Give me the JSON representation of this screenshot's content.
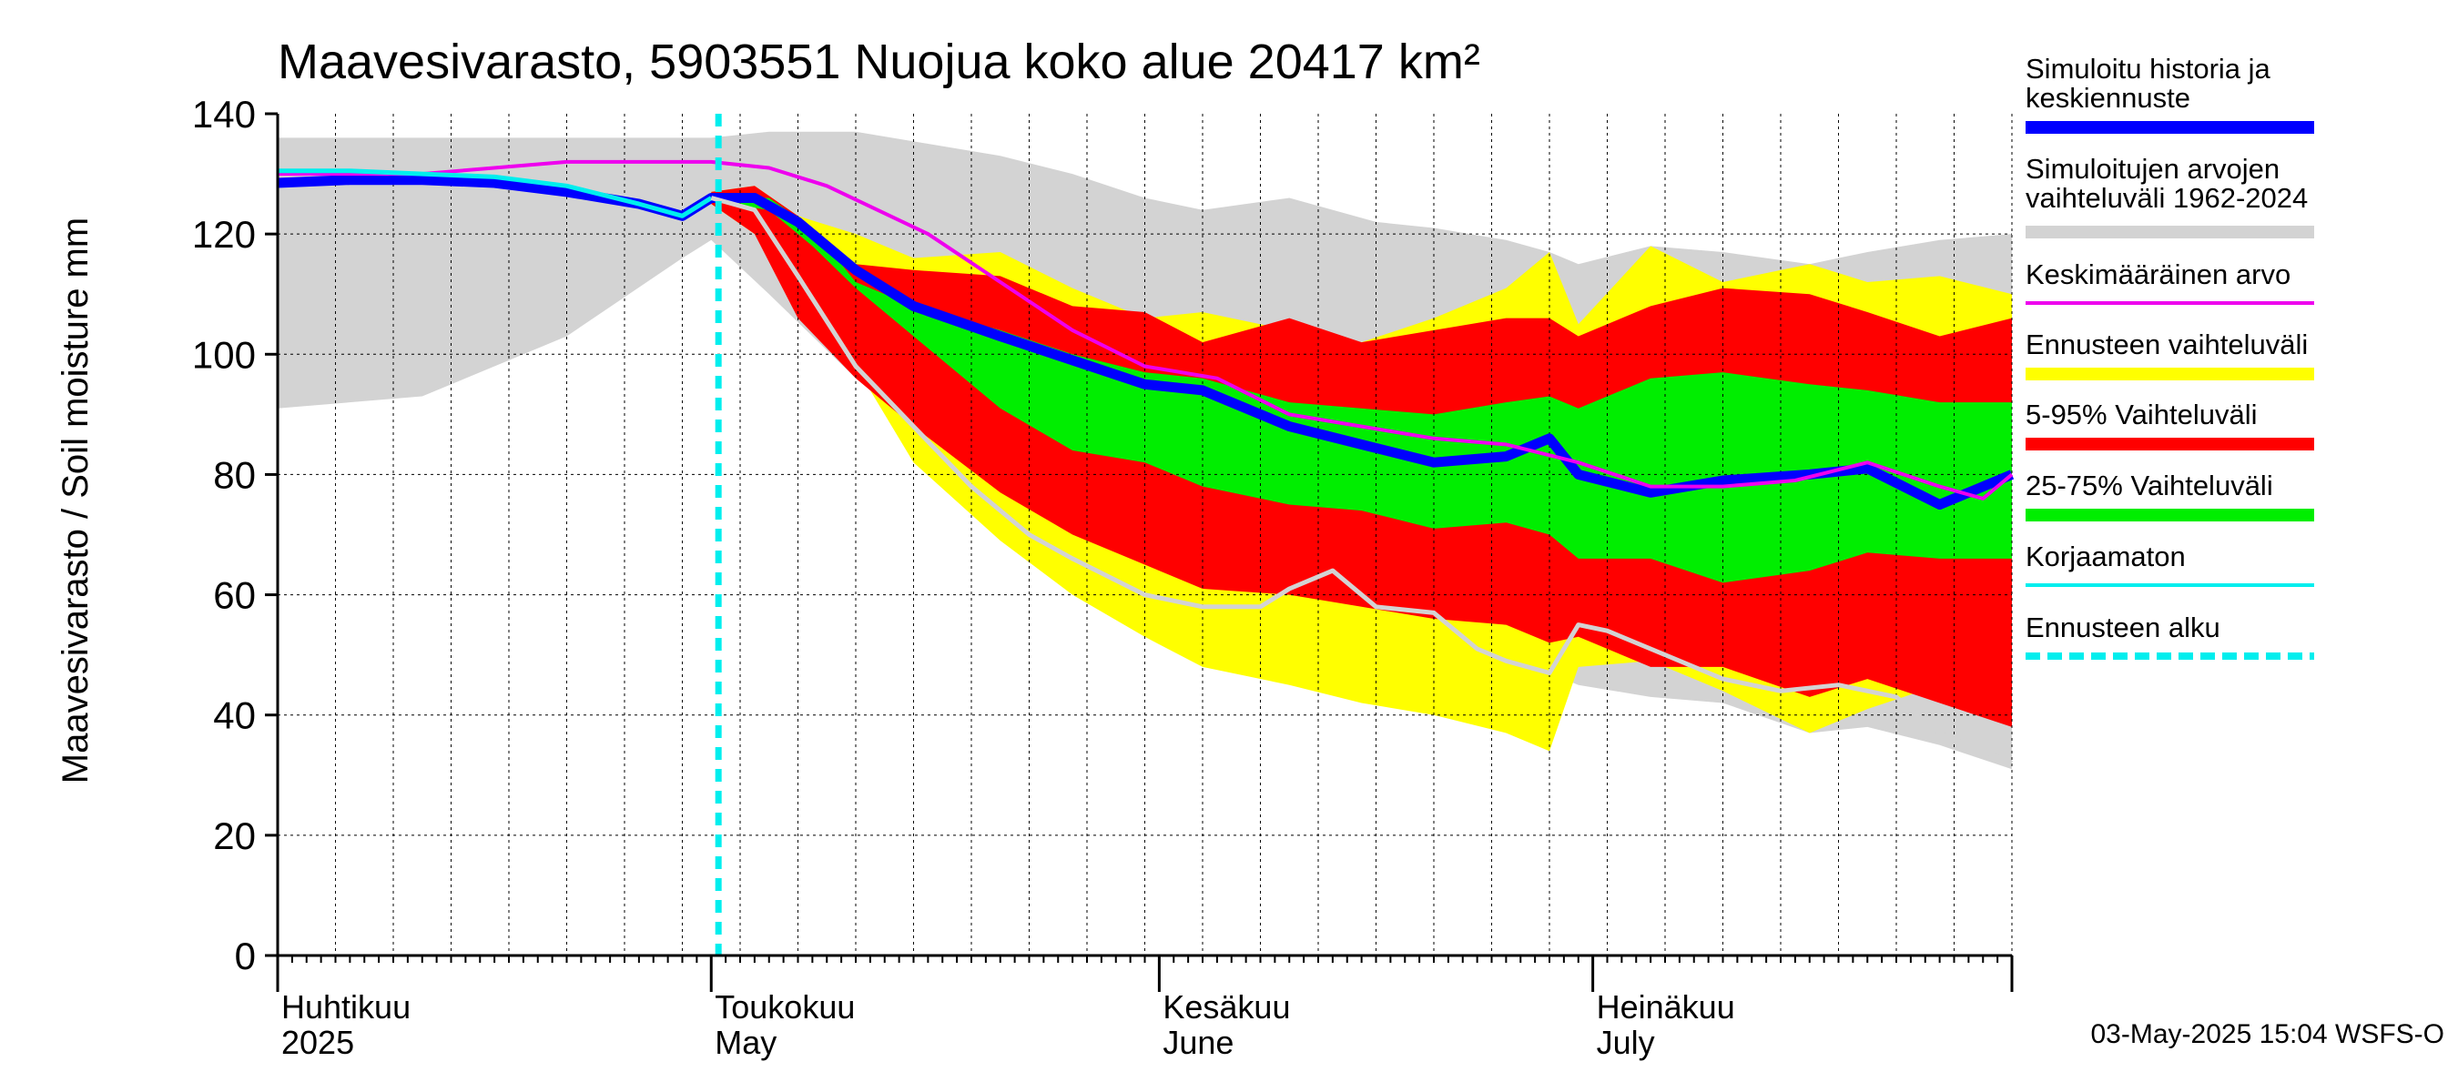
{
  "chart_data": {
    "type": "area",
    "title": "Maavesivarasto, 5903551 Nuojua koko alue 20417 km²",
    "ylabel": "Maavesivarasto / Soil moisture   mm",
    "ylim": [
      0,
      140
    ],
    "yticks": [
      0,
      20,
      40,
      60,
      80,
      100,
      120,
      140
    ],
    "x_range_days": [
      0,
      120
    ],
    "x_unit": "days since 1 April 2025",
    "month_labels": [
      {
        "fi": "Huhtikuu",
        "en": "2025",
        "day": 0
      },
      {
        "fi": "Toukokuu",
        "en": "May",
        "day": 30
      },
      {
        "fi": "Kesäkuu",
        "en": "June",
        "day": 61
      },
      {
        "fi": "Heinäkuu",
        "en": "July",
        "day": 91
      }
    ],
    "forecast_start_day": 30.5,
    "bands": [
      {
        "name": "Simuloitujen arvojen vaihteluväli 1962-2024",
        "color": "#d3d3d3",
        "x": [
          0,
          10,
          20,
          28,
          30,
          34,
          40,
          45,
          50,
          55,
          60,
          64,
          70,
          76,
          80,
          85,
          88,
          90,
          95,
          100,
          106,
          110,
          115,
          120
        ],
        "upper": [
          136,
          136,
          136,
          136,
          136,
          137,
          137,
          135,
          133,
          130,
          126,
          124,
          126,
          122,
          121,
          119,
          117,
          115,
          118,
          117,
          115,
          117,
          119,
          120
        ],
        "lower": [
          91,
          93,
          103,
          116,
          119,
          110,
          96,
          87,
          78,
          71,
          64,
          60,
          56,
          52,
          49,
          48,
          47,
          45,
          43,
          42,
          37,
          38,
          35,
          31
        ]
      },
      {
        "name": "Ennusteen vaihteluväli",
        "color": "#ffff00",
        "x": [
          30,
          33,
          36,
          40,
          44,
          50,
          55,
          60,
          64,
          70,
          75,
          80,
          85,
          88,
          90,
          95,
          100,
          106,
          110,
          115,
          120
        ],
        "upper": [
          127,
          128,
          123,
          120,
          116,
          117,
          111,
          106,
          107,
          104,
          102,
          106,
          111,
          117,
          105,
          118,
          112,
          115,
          112,
          113,
          110
        ],
        "lower": [
          125,
          120,
          113,
          98,
          82,
          69,
          60,
          53,
          48,
          45,
          42,
          40,
          37,
          34,
          48,
          49,
          44,
          37,
          41,
          45,
          38
        ]
      },
      {
        "name": "5-95% Vaihteluväli",
        "color": "#ff0000",
        "x": [
          30,
          33,
          36,
          40,
          44,
          50,
          55,
          60,
          64,
          70,
          75,
          80,
          85,
          88,
          90,
          95,
          100,
          106,
          110,
          115,
          120
        ],
        "upper": [
          127,
          128,
          123,
          115,
          114,
          113,
          108,
          107,
          102,
          106,
          102,
          104,
          106,
          106,
          103,
          108,
          111,
          110,
          107,
          103,
          106
        ],
        "lower": [
          125,
          120,
          106,
          96,
          88,
          77,
          70,
          65,
          61,
          60,
          58,
          56,
          55,
          52,
          53,
          48,
          48,
          43,
          46,
          42,
          38
        ]
      },
      {
        "name": "25-75% Vaihteluväli",
        "color": "#00ee00",
        "x": [
          31,
          34,
          37,
          40,
          44,
          50,
          55,
          60,
          64,
          70,
          75,
          80,
          85,
          88,
          90,
          95,
          100,
          106,
          110,
          115,
          120
        ],
        "upper": [
          126,
          126,
          121,
          112,
          108,
          104,
          100,
          97,
          96,
          92,
          91,
          90,
          92,
          93,
          91,
          96,
          97,
          95,
          94,
          92,
          92
        ],
        "lower": [
          125,
          124,
          118,
          111,
          103,
          91,
          84,
          82,
          78,
          75,
          74,
          71,
          72,
          70,
          66,
          66,
          62,
          64,
          67,
          66,
          66
        ]
      }
    ],
    "series": [
      {
        "name": "Simuloitu historia ja keskiennuste",
        "color": "#0000ff",
        "x": [
          0,
          5,
          10,
          15,
          20,
          25,
          28,
          30,
          33,
          36,
          40,
          44,
          50,
          55,
          60,
          64,
          70,
          75,
          80,
          85,
          88,
          90,
          95,
          100,
          106,
          110,
          115,
          120
        ],
        "values": [
          128.5,
          129,
          129,
          128.5,
          127,
          125,
          123,
          126,
          126,
          122,
          114,
          108,
          103,
          99,
          95,
          94,
          88,
          85,
          82,
          83,
          86,
          80,
          77,
          79,
          80,
          81,
          75,
          80
        ]
      },
      {
        "name": "Keskimääräinen arvo",
        "color": "#ee00ee",
        "x": [
          0,
          10,
          20,
          30,
          34,
          38,
          45,
          50,
          55,
          60,
          65,
          70,
          75,
          80,
          85,
          90,
          95,
          100,
          105,
          110,
          115,
          118,
          120
        ],
        "values": [
          130,
          130,
          132,
          132,
          131,
          128,
          120,
          112,
          104,
          98,
          96,
          90,
          88,
          86,
          85,
          82,
          78,
          78,
          79,
          82,
          78,
          76,
          80
        ]
      },
      {
        "name": "Korjaamaton",
        "color": "#00eeee",
        "x": [
          0,
          5,
          10,
          15,
          20,
          25,
          28,
          30
        ],
        "values": [
          130.5,
          130.5,
          130,
          129.5,
          128,
          125,
          123,
          126
        ]
      },
      {
        "name": "",
        "color": "#d3d3d3",
        "x": [
          30,
          33,
          36,
          40,
          44,
          48,
          52,
          55,
          60,
          64,
          68,
          70,
          73,
          76,
          80,
          83,
          85,
          88,
          90,
          92,
          95,
          100,
          104,
          108,
          112,
          115,
          120
        ],
        "values": [
          126,
          124,
          113,
          98,
          88,
          78,
          70,
          66,
          60,
          58,
          58,
          61,
          64,
          58,
          57,
          51,
          49,
          47,
          55,
          54,
          51,
          46,
          44,
          45,
          43,
          37,
          32
        ]
      }
    ],
    "legend": [
      {
        "label": "Simuloitu historia ja keskiennuste",
        "color": "#0000ff",
        "style": "thick"
      },
      {
        "label": "Simuloitujen arvojen vaihteluväli 1962-2024",
        "color": "#d3d3d3",
        "style": "thick"
      },
      {
        "label": "Keskimääräinen arvo",
        "color": "#ee00ee",
        "style": "thin"
      },
      {
        "label": "Ennusteen vaihteluväli",
        "color": "#ffff00",
        "style": "thick"
      },
      {
        "label": "5-95% Vaihteluväli",
        "color": "#ff0000",
        "style": "thick"
      },
      {
        "label": "25-75% Vaihteluväli",
        "color": "#00ee00",
        "style": "thick"
      },
      {
        "label": "Korjaamaton",
        "color": "#00eeee",
        "style": "thin"
      },
      {
        "label": "Ennusteen alku",
        "color": "#00eeee",
        "style": "dashed"
      }
    ],
    "footer": "03-May-2025 15:04 WSFS-O"
  }
}
